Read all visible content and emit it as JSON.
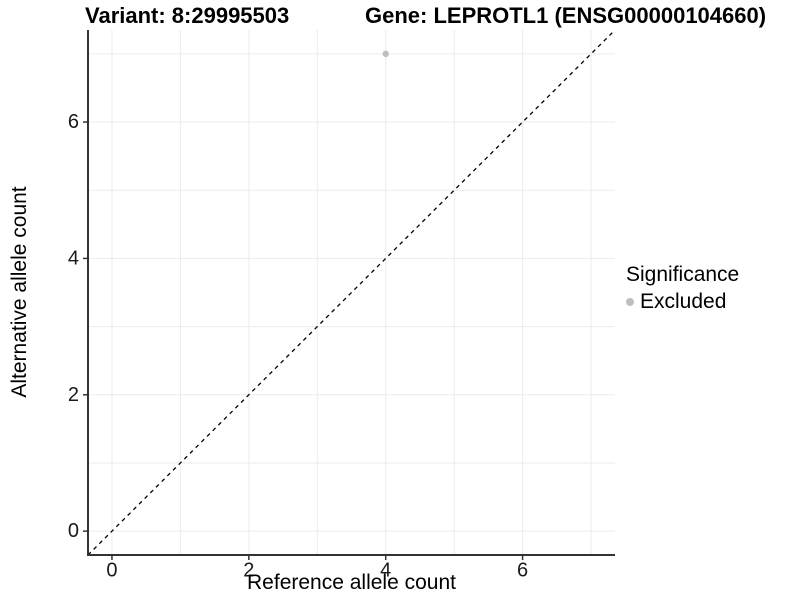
{
  "header": {
    "variant_title": "Variant: 8:29995503",
    "gene_title": "Gene: LEPROTL1 (ENSG00000104660)"
  },
  "chart_data": {
    "type": "scatter",
    "xlabel": "Reference allele count",
    "ylabel": "Alternative allele count",
    "xlim": [
      -0.35,
      7.35
    ],
    "ylim": [
      -0.35,
      7.35
    ],
    "x_ticks": [
      0,
      2,
      4,
      6
    ],
    "y_ticks": [
      0,
      2,
      4,
      6
    ],
    "grid_lines_at": [
      0,
      1,
      2,
      3,
      4,
      5,
      6,
      7
    ],
    "grid": true,
    "identity_line": {
      "equation": "y = x",
      "style": "dashed",
      "color": "#000000"
    },
    "series": [
      {
        "name": "Excluded",
        "color": "#bebebe",
        "points": [
          {
            "x": 4,
            "y": 7
          }
        ]
      }
    ],
    "legend": {
      "title": "Significance",
      "position": "right",
      "entries": [
        {
          "label": "Excluded",
          "color": "#bebebe"
        }
      ]
    },
    "colors": {
      "grid": "#ebebeb",
      "axis": "#333333",
      "tick_label": "#1a1a1a"
    }
  }
}
